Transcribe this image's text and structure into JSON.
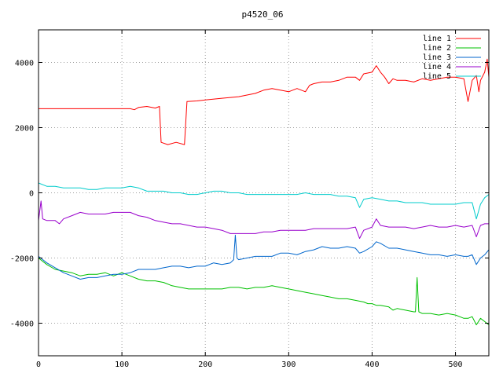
{
  "chart_data": {
    "type": "line",
    "title": "p4520_06",
    "xlabel": "",
    "ylabel": "",
    "xlim": [
      0,
      540
    ],
    "ylim": [
      -5000,
      5000
    ],
    "x_ticks": [
      0,
      100,
      200,
      300,
      400,
      500
    ],
    "y_ticks": [
      -4000,
      -2000,
      0,
      2000,
      4000
    ],
    "grid": true,
    "legend_position": "top-right",
    "series": [
      {
        "name": "line 1",
        "color": "#ff0000",
        "points": [
          [
            0,
            2580
          ],
          [
            110,
            2580
          ],
          [
            115,
            2550
          ],
          [
            120,
            2620
          ],
          [
            130,
            2650
          ],
          [
            140,
            2600
          ],
          [
            145,
            2650
          ],
          [
            147,
            1550
          ],
          [
            155,
            1480
          ],
          [
            165,
            1550
          ],
          [
            175,
            1480
          ],
          [
            178,
            2800
          ],
          [
            190,
            2820
          ],
          [
            200,
            2850
          ],
          [
            220,
            2900
          ],
          [
            240,
            2950
          ],
          [
            260,
            3050
          ],
          [
            270,
            3150
          ],
          [
            280,
            3200
          ],
          [
            290,
            3150
          ],
          [
            300,
            3100
          ],
          [
            310,
            3200
          ],
          [
            320,
            3100
          ],
          [
            325,
            3300
          ],
          [
            330,
            3350
          ],
          [
            340,
            3400
          ],
          [
            350,
            3400
          ],
          [
            360,
            3450
          ],
          [
            370,
            3550
          ],
          [
            380,
            3550
          ],
          [
            385,
            3450
          ],
          [
            390,
            3650
          ],
          [
            400,
            3700
          ],
          [
            405,
            3900
          ],
          [
            410,
            3700
          ],
          [
            415,
            3550
          ],
          [
            420,
            3350
          ],
          [
            425,
            3500
          ],
          [
            430,
            3450
          ],
          [
            440,
            3450
          ],
          [
            450,
            3400
          ],
          [
            460,
            3500
          ],
          [
            470,
            3450
          ],
          [
            480,
            3500
          ],
          [
            490,
            3550
          ],
          [
            500,
            3550
          ],
          [
            510,
            3500
          ],
          [
            515,
            2800
          ],
          [
            520,
            3450
          ],
          [
            525,
            3600
          ],
          [
            528,
            3100
          ],
          [
            530,
            3450
          ],
          [
            535,
            3700
          ],
          [
            538,
            4100
          ],
          [
            540,
            3550
          ]
        ]
      },
      {
        "name": "line 2",
        "color": "#00c000",
        "points": [
          [
            0,
            -2000
          ],
          [
            10,
            -2200
          ],
          [
            20,
            -2350
          ],
          [
            30,
            -2400
          ],
          [
            40,
            -2450
          ],
          [
            50,
            -2550
          ],
          [
            60,
            -2500
          ],
          [
            70,
            -2500
          ],
          [
            80,
            -2450
          ],
          [
            90,
            -2550
          ],
          [
            100,
            -2450
          ],
          [
            110,
            -2550
          ],
          [
            120,
            -2650
          ],
          [
            130,
            -2700
          ],
          [
            140,
            -2700
          ],
          [
            150,
            -2750
          ],
          [
            160,
            -2850
          ],
          [
            170,
            -2900
          ],
          [
            180,
            -2950
          ],
          [
            190,
            -2950
          ],
          [
            200,
            -2950
          ],
          [
            210,
            -2950
          ],
          [
            220,
            -2950
          ],
          [
            230,
            -2900
          ],
          [
            240,
            -2900
          ],
          [
            250,
            -2950
          ],
          [
            260,
            -2900
          ],
          [
            270,
            -2900
          ],
          [
            280,
            -2850
          ],
          [
            290,
            -2900
          ],
          [
            300,
            -2950
          ],
          [
            310,
            -3000
          ],
          [
            320,
            -3050
          ],
          [
            330,
            -3100
          ],
          [
            340,
            -3150
          ],
          [
            350,
            -3200
          ],
          [
            360,
            -3250
          ],
          [
            370,
            -3250
          ],
          [
            380,
            -3300
          ],
          [
            390,
            -3350
          ],
          [
            395,
            -3400
          ],
          [
            400,
            -3400
          ],
          [
            405,
            -3450
          ],
          [
            410,
            -3450
          ],
          [
            420,
            -3500
          ],
          [
            425,
            -3600
          ],
          [
            430,
            -3550
          ],
          [
            440,
            -3600
          ],
          [
            450,
            -3650
          ],
          [
            452,
            -3650
          ],
          [
            454,
            -2600
          ],
          [
            456,
            -3650
          ],
          [
            460,
            -3700
          ],
          [
            470,
            -3700
          ],
          [
            480,
            -3750
          ],
          [
            490,
            -3700
          ],
          [
            500,
            -3750
          ],
          [
            505,
            -3800
          ],
          [
            510,
            -3850
          ],
          [
            515,
            -3850
          ],
          [
            520,
            -3800
          ],
          [
            525,
            -4050
          ],
          [
            530,
            -3850
          ],
          [
            535,
            -3950
          ],
          [
            540,
            -4050
          ]
        ]
      },
      {
        "name": "line 3",
        "color": "#0066cc",
        "points": [
          [
            0,
            -1950
          ],
          [
            10,
            -2150
          ],
          [
            20,
            -2300
          ],
          [
            30,
            -2450
          ],
          [
            40,
            -2550
          ],
          [
            50,
            -2650
          ],
          [
            60,
            -2600
          ],
          [
            70,
            -2600
          ],
          [
            80,
            -2550
          ],
          [
            90,
            -2500
          ],
          [
            100,
            -2500
          ],
          [
            110,
            -2450
          ],
          [
            120,
            -2350
          ],
          [
            130,
            -2350
          ],
          [
            140,
            -2350
          ],
          [
            150,
            -2300
          ],
          [
            160,
            -2250
          ],
          [
            170,
            -2250
          ],
          [
            180,
            -2300
          ],
          [
            190,
            -2250
          ],
          [
            200,
            -2250
          ],
          [
            210,
            -2150
          ],
          [
            220,
            -2200
          ],
          [
            230,
            -2150
          ],
          [
            234,
            -2050
          ],
          [
            236,
            -1300
          ],
          [
            238,
            -2000
          ],
          [
            240,
            -2050
          ],
          [
            250,
            -2000
          ],
          [
            260,
            -1950
          ],
          [
            270,
            -1950
          ],
          [
            280,
            -1950
          ],
          [
            290,
            -1850
          ],
          [
            300,
            -1850
          ],
          [
            310,
            -1900
          ],
          [
            320,
            -1800
          ],
          [
            330,
            -1750
          ],
          [
            340,
            -1650
          ],
          [
            350,
            -1700
          ],
          [
            360,
            -1700
          ],
          [
            370,
            -1650
          ],
          [
            380,
            -1700
          ],
          [
            385,
            -1850
          ],
          [
            390,
            -1800
          ],
          [
            400,
            -1650
          ],
          [
            405,
            -1500
          ],
          [
            410,
            -1550
          ],
          [
            420,
            -1700
          ],
          [
            430,
            -1700
          ],
          [
            440,
            -1750
          ],
          [
            450,
            -1800
          ],
          [
            460,
            -1850
          ],
          [
            470,
            -1900
          ],
          [
            480,
            -1900
          ],
          [
            490,
            -1950
          ],
          [
            500,
            -1900
          ],
          [
            510,
            -1950
          ],
          [
            515,
            -1950
          ],
          [
            520,
            -1900
          ],
          [
            525,
            -2200
          ],
          [
            530,
            -2000
          ],
          [
            535,
            -1900
          ],
          [
            540,
            -1750
          ]
        ]
      },
      {
        "name": "line 4",
        "color": "#9900cc",
        "points": [
          [
            0,
            -850
          ],
          [
            3,
            -250
          ],
          [
            5,
            -800
          ],
          [
            10,
            -850
          ],
          [
            20,
            -850
          ],
          [
            25,
            -950
          ],
          [
            30,
            -800
          ],
          [
            40,
            -700
          ],
          [
            50,
            -600
          ],
          [
            60,
            -650
          ],
          [
            70,
            -650
          ],
          [
            80,
            -650
          ],
          [
            90,
            -600
          ],
          [
            100,
            -600
          ],
          [
            110,
            -600
          ],
          [
            120,
            -700
          ],
          [
            130,
            -750
          ],
          [
            140,
            -850
          ],
          [
            150,
            -900
          ],
          [
            160,
            -950
          ],
          [
            170,
            -950
          ],
          [
            180,
            -1000
          ],
          [
            190,
            -1050
          ],
          [
            200,
            -1050
          ],
          [
            210,
            -1100
          ],
          [
            220,
            -1150
          ],
          [
            230,
            -1250
          ],
          [
            240,
            -1250
          ],
          [
            250,
            -1250
          ],
          [
            260,
            -1250
          ],
          [
            270,
            -1200
          ],
          [
            280,
            -1200
          ],
          [
            290,
            -1150
          ],
          [
            300,
            -1150
          ],
          [
            310,
            -1150
          ],
          [
            320,
            -1150
          ],
          [
            330,
            -1100
          ],
          [
            340,
            -1100
          ],
          [
            350,
            -1100
          ],
          [
            360,
            -1100
          ],
          [
            370,
            -1100
          ],
          [
            380,
            -1050
          ],
          [
            385,
            -1400
          ],
          [
            390,
            -1150
          ],
          [
            400,
            -1050
          ],
          [
            405,
            -800
          ],
          [
            410,
            -1000
          ],
          [
            420,
            -1050
          ],
          [
            430,
            -1050
          ],
          [
            440,
            -1050
          ],
          [
            450,
            -1100
          ],
          [
            460,
            -1050
          ],
          [
            470,
            -1000
          ],
          [
            480,
            -1050
          ],
          [
            490,
            -1050
          ],
          [
            500,
            -1000
          ],
          [
            510,
            -1050
          ],
          [
            520,
            -1000
          ],
          [
            525,
            -1350
          ],
          [
            530,
            -1000
          ],
          [
            535,
            -950
          ],
          [
            540,
            -950
          ]
        ]
      },
      {
        "name": "line 5",
        "color": "#00cccc",
        "points": [
          [
            0,
            300
          ],
          [
            10,
            200
          ],
          [
            20,
            200
          ],
          [
            30,
            150
          ],
          [
            40,
            150
          ],
          [
            50,
            150
          ],
          [
            60,
            100
          ],
          [
            70,
            100
          ],
          [
            80,
            150
          ],
          [
            90,
            150
          ],
          [
            100,
            150
          ],
          [
            110,
            200
          ],
          [
            120,
            150
          ],
          [
            130,
            50
          ],
          [
            140,
            50
          ],
          [
            150,
            50
          ],
          [
            160,
            0
          ],
          [
            170,
            0
          ],
          [
            180,
            -50
          ],
          [
            190,
            -50
          ],
          [
            200,
            0
          ],
          [
            210,
            50
          ],
          [
            220,
            50
          ],
          [
            230,
            0
          ],
          [
            240,
            0
          ],
          [
            250,
            -50
          ],
          [
            260,
            -50
          ],
          [
            270,
            -50
          ],
          [
            280,
            -50
          ],
          [
            290,
            -50
          ],
          [
            300,
            -50
          ],
          [
            310,
            -50
          ],
          [
            320,
            0
          ],
          [
            330,
            -50
          ],
          [
            340,
            -50
          ],
          [
            350,
            -50
          ],
          [
            360,
            -100
          ],
          [
            370,
            -100
          ],
          [
            380,
            -150
          ],
          [
            385,
            -450
          ],
          [
            390,
            -200
          ],
          [
            400,
            -150
          ],
          [
            410,
            -200
          ],
          [
            420,
            -250
          ],
          [
            430,
            -250
          ],
          [
            440,
            -300
          ],
          [
            450,
            -300
          ],
          [
            460,
            -300
          ],
          [
            470,
            -350
          ],
          [
            480,
            -350
          ],
          [
            490,
            -350
          ],
          [
            500,
            -350
          ],
          [
            510,
            -300
          ],
          [
            520,
            -300
          ],
          [
            525,
            -800
          ],
          [
            530,
            -350
          ],
          [
            535,
            -150
          ],
          [
            540,
            -50
          ]
        ]
      }
    ]
  }
}
